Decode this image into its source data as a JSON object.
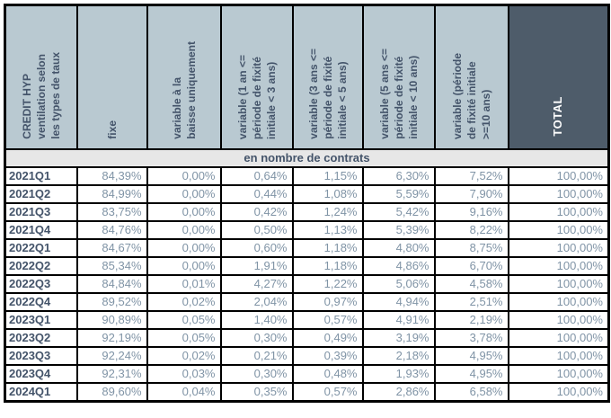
{
  "colors": {
    "header-bg": "#b9c9d1",
    "total-bg": "#4e5c6a",
    "header-text": "#44546a",
    "data-text": "#8094a6",
    "banner-bg": "#e7e7e7",
    "border": "#000000"
  },
  "chart_data": {
    "type": "table",
    "title": "CREDIT HYP ventilation selon les types de taux",
    "section_label": "en nombre de contrats",
    "columns": [
      "CREDIT HYP\nventilation selon\nles types de taux",
      "fixe",
      "variable à la\nbaisse uniquement",
      "variable (1 an <=\npériode de fixité\ninitiale < 3 ans)",
      "variable (3 ans <=\npériode de fixité\ninitiale < 5 ans)",
      "variable (5 ans <=\npériode de fixité\ninitiale < 10 ans)",
      "variable (période\nde fixité initiale\n>=10 ans)",
      "TOTAL"
    ],
    "rows": [
      {
        "label": "2021Q1",
        "values": [
          "84,39%",
          "0,00%",
          "0,64%",
          "1,15%",
          "6,30%",
          "7,52%",
          "100,00%"
        ]
      },
      {
        "label": "2021Q2",
        "values": [
          "84,99%",
          "0,00%",
          "0,44%",
          "1,08%",
          "5,59%",
          "7,90%",
          "100,00%"
        ]
      },
      {
        "label": "2021Q3",
        "values": [
          "83,75%",
          "0,00%",
          "0,42%",
          "1,24%",
          "5,42%",
          "9,16%",
          "100,00%"
        ]
      },
      {
        "label": "2021Q4",
        "values": [
          "84,76%",
          "0,00%",
          "0,50%",
          "1,13%",
          "5,39%",
          "8,22%",
          "100,00%"
        ]
      },
      {
        "label": "2022Q1",
        "values": [
          "84,67%",
          "0,00%",
          "0,60%",
          "1,18%",
          "4,80%",
          "8,75%",
          "100,00%"
        ]
      },
      {
        "label": "2022Q2",
        "values": [
          "85,34%",
          "0,00%",
          "1,91%",
          "1,18%",
          "4,86%",
          "6,70%",
          "100,00%"
        ]
      },
      {
        "label": "2022Q3",
        "values": [
          "84,84%",
          "0,01%",
          "4,27%",
          "1,22%",
          "5,06%",
          "4,58%",
          "100,00%"
        ]
      },
      {
        "label": "2022Q4",
        "values": [
          "89,52%",
          "0,02%",
          "2,04%",
          "0,97%",
          "4,94%",
          "2,51%",
          "100,00%"
        ]
      },
      {
        "label": "2023Q1",
        "values": [
          "90,89%",
          "0,05%",
          "1,40%",
          "0,57%",
          "4,91%",
          "2,19%",
          "100,00%"
        ]
      },
      {
        "label": "2023Q2",
        "values": [
          "92,19%",
          "0,05%",
          "0,30%",
          "0,49%",
          "3,19%",
          "3,78%",
          "100,00%"
        ]
      },
      {
        "label": "2023Q3",
        "values": [
          "92,24%",
          "0,02%",
          "0,21%",
          "0,39%",
          "2,18%",
          "4,95%",
          "100,00%"
        ]
      },
      {
        "label": "2023Q4",
        "values": [
          "92,31%",
          "0,03%",
          "0,30%",
          "0,48%",
          "1,93%",
          "4,95%",
          "100,00%"
        ]
      },
      {
        "label": "2024Q1",
        "values": [
          "89,60%",
          "0,04%",
          "0,35%",
          "0,57%",
          "2,86%",
          "6,58%",
          "100,00%"
        ]
      }
    ]
  }
}
